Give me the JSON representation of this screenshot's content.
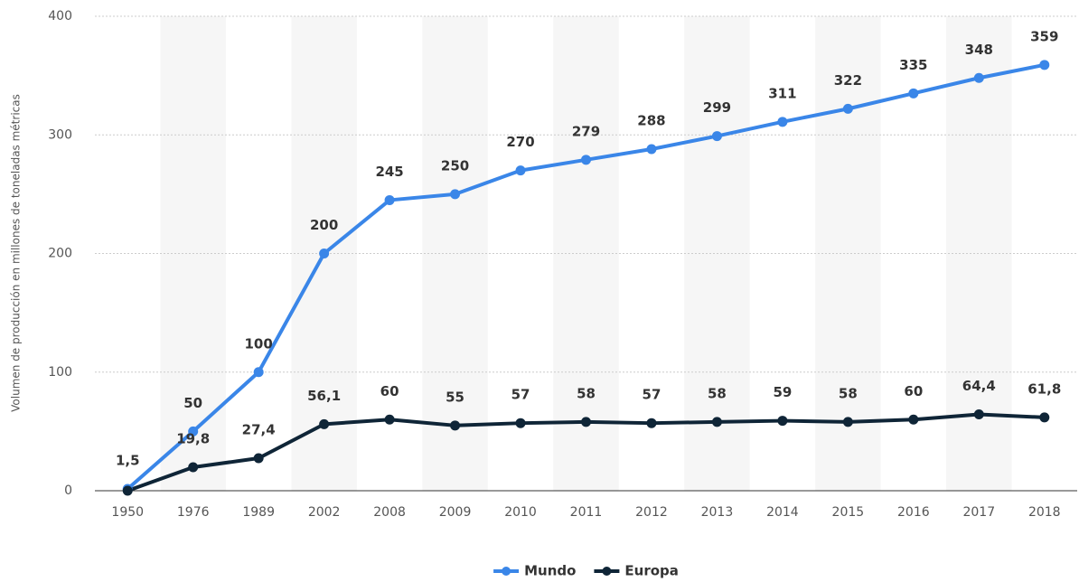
{
  "chart_data": {
    "type": "line",
    "y_axis_label": "Volumen de producción en millones de toneladas métricas",
    "categories": [
      "1950",
      "1976",
      "1989",
      "2002",
      "2008",
      "2009",
      "2010",
      "2011",
      "2012",
      "2013",
      "2014",
      "2015",
      "2016",
      "2017",
      "2018"
    ],
    "series": [
      {
        "name": "Mundo",
        "color": "#3a86e8",
        "values": [
          1.5,
          50,
          100,
          200,
          245,
          250,
          270,
          279,
          288,
          299,
          311,
          322,
          335,
          348,
          359
        ],
        "value_labels": [
          "1,5",
          "50",
          "100",
          "200",
          "245",
          "250",
          "270",
          "279",
          "288",
          "299",
          "311",
          "322",
          "335",
          "348",
          "359"
        ]
      },
      {
        "name": "Europa",
        "color": "#0f2537",
        "values": [
          0,
          19.8,
          27.4,
          56.1,
          60,
          55,
          57,
          58,
          57,
          58,
          59,
          58,
          60,
          64.4,
          61.8
        ],
        "value_labels": [
          null,
          "19,8",
          "27,4",
          "56,1",
          "60",
          "55",
          "57",
          "58",
          "57",
          "58",
          "59",
          "58",
          "60",
          "64,4",
          "61,8"
        ]
      }
    ],
    "ylim": [
      0,
      400
    ],
    "yticks": [
      0,
      100,
      200,
      300,
      400
    ],
    "grid": true,
    "legend": "bottom"
  }
}
